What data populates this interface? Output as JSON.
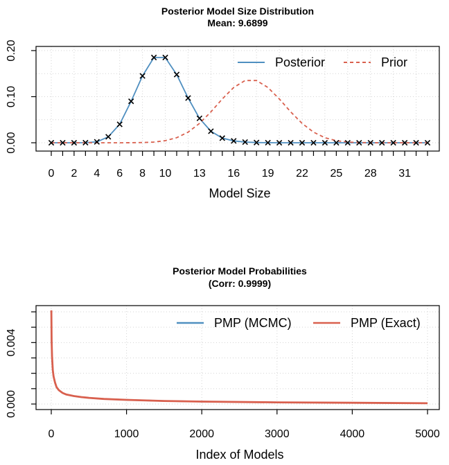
{
  "chart_data": [
    {
      "type": "line",
      "title": "Posterior Model Size Distribution",
      "subtitle": "Mean: 9.6899",
      "xlabel": "Model Size",
      "ylabel": "",
      "xlim": [
        0,
        33
      ],
      "ylim": [
        0,
        0.2
      ],
      "y_ticks": [
        0.0,
        0.1,
        0.2
      ],
      "y_tick_labels": [
        "0.00",
        "0.10",
        "0.20"
      ],
      "x_tick_labels": [
        "0",
        "2",
        "4",
        "6",
        "8",
        "10",
        "13",
        "16",
        "19",
        "22",
        "25",
        "28",
        "31"
      ],
      "grid": true,
      "legend_position": "top-right",
      "x": [
        0,
        1,
        2,
        3,
        4,
        5,
        6,
        7,
        8,
        9,
        10,
        11,
        12,
        13,
        14,
        15,
        16,
        17,
        18,
        19,
        20,
        21,
        22,
        23,
        24,
        25,
        26,
        27,
        28,
        29,
        30,
        31,
        32,
        33
      ],
      "series": [
        {
          "name": "Posterior",
          "style": "solid",
          "color": "#4f8fc0",
          "markers": "x",
          "values": [
            0,
            0,
            0,
            0.0002,
            0.002,
            0.013,
            0.04,
            0.09,
            0.145,
            0.185,
            0.185,
            0.148,
            0.097,
            0.053,
            0.025,
            0.01,
            0.004,
            0.0015,
            0.0005,
            0.0002,
            0,
            0,
            0,
            0,
            0,
            0,
            0,
            0,
            0,
            0,
            0,
            0,
            0,
            0
          ]
        },
        {
          "name": "Prior",
          "style": "dashed",
          "color": "#d9604e",
          "values": [
            0,
            0,
            0,
            0,
            0,
            0,
            0,
            0.0001,
            0.0005,
            0.0015,
            0.0045,
            0.011,
            0.023,
            0.042,
            0.067,
            0.095,
            0.12,
            0.135,
            0.135,
            0.12,
            0.095,
            0.067,
            0.042,
            0.023,
            0.011,
            0.0045,
            0.0015,
            0.0005,
            0.0001,
            0,
            0,
            0,
            0,
            0
          ]
        }
      ]
    },
    {
      "type": "line",
      "title": "Posterior Model Probabilities",
      "subtitle": "(Corr: 0.9999)",
      "xlabel": "Index of Models",
      "ylabel": "",
      "xlim": [
        0,
        5000
      ],
      "ylim": [
        0,
        0.006
      ],
      "x_ticks": [
        0,
        1000,
        2000,
        3000,
        4000,
        5000
      ],
      "x_tick_labels": [
        "0",
        "1000",
        "2000",
        "3000",
        "4000",
        "5000"
      ],
      "y_minor_ticks": [
        0,
        0.001,
        0.002,
        0.003,
        0.004,
        0.005,
        0.006
      ],
      "y_ticks": [
        0.0,
        0.004
      ],
      "y_tick_labels": [
        "0.000",
        "0.004"
      ],
      "grid": true,
      "legend_position": "top-right",
      "series": [
        {
          "name": "PMP (MCMC)",
          "style": "solid",
          "color": "#4f8fc0",
          "x": [
            1,
            5,
            10,
            20,
            30,
            50,
            70,
            100,
            150,
            200,
            300,
            400,
            500,
            700,
            1000,
            1500,
            2000,
            3000,
            4000,
            5000
          ],
          "values": [
            0.006,
            0.004,
            0.003,
            0.0022,
            0.0018,
            0.0014,
            0.0011,
            0.0009,
            0.00072,
            0.00062,
            0.00052,
            0.00045,
            0.0004,
            0.00033,
            0.00027,
            0.0002,
            0.00016,
            0.00011,
            8e-05,
            5e-05
          ]
        },
        {
          "name": "PMP (Exact)",
          "style": "solid",
          "color": "#d9604e",
          "x": [
            1,
            5,
            10,
            20,
            30,
            50,
            70,
            100,
            150,
            200,
            300,
            400,
            500,
            700,
            1000,
            1500,
            2000,
            3000,
            4000,
            5000
          ],
          "values": [
            0.0061,
            0.0041,
            0.0031,
            0.0022,
            0.0018,
            0.0014,
            0.0011,
            0.0009,
            0.00072,
            0.00062,
            0.00052,
            0.00045,
            0.0004,
            0.00033,
            0.00027,
            0.0002,
            0.00016,
            0.00011,
            8e-05,
            5e-05
          ]
        }
      ]
    }
  ]
}
